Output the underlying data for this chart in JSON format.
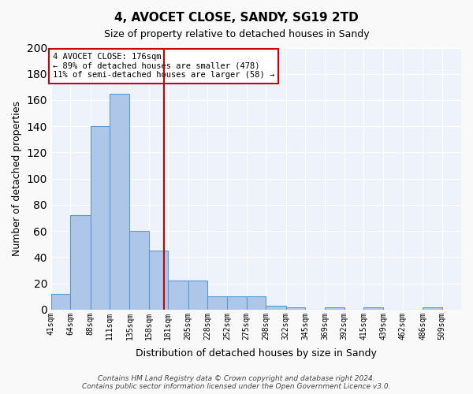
{
  "title": "4, AVOCET CLOSE, SANDY, SG19 2TD",
  "subtitle": "Size of property relative to detached houses in Sandy",
  "xlabel": "Distribution of detached houses by size in Sandy",
  "ylabel": "Number of detached properties",
  "bar_values": [
    12,
    72,
    140,
    165,
    60,
    45,
    22,
    22,
    10,
    10,
    10,
    3,
    2,
    0,
    2,
    0,
    2,
    0,
    0,
    2
  ],
  "categories": [
    "41sqm",
    "64sqm",
    "88sqm",
    "111sqm",
    "135sqm",
    "158sqm",
    "181sqm",
    "205sqm",
    "228sqm",
    "252sqm",
    "275sqm",
    "298sqm",
    "322sqm",
    "345sqm",
    "369sqm",
    "392sqm",
    "415sqm",
    "439sqm",
    "462sqm",
    "486sqm",
    "509sqm"
  ],
  "bar_color": "#aec6e8",
  "bar_edge_color": "#5b9bd5",
  "background_color": "#eef3fb",
  "grid_color": "#ffffff",
  "annotation_box_color": "#cc0000",
  "red_line_x": 176,
  "bin_edges": [
    41,
    64,
    88,
    111,
    135,
    158,
    181,
    205,
    228,
    252,
    275,
    298,
    322,
    345,
    369,
    392,
    415,
    439,
    462,
    486,
    509
  ],
  "annotation_line1": "4 AVOCET CLOSE: 176sqm",
  "annotation_line2": "← 89% of detached houses are smaller (478)",
  "annotation_line3": "11% of semi-detached houses are larger (58) →",
  "footer": "Contains HM Land Registry data © Crown copyright and database right 2024.\nContains public sector information licensed under the Open Government Licence v3.0.",
  "ylim": [
    0,
    200
  ],
  "yticks": [
    0,
    20,
    40,
    60,
    80,
    100,
    120,
    140,
    160,
    180,
    200
  ]
}
